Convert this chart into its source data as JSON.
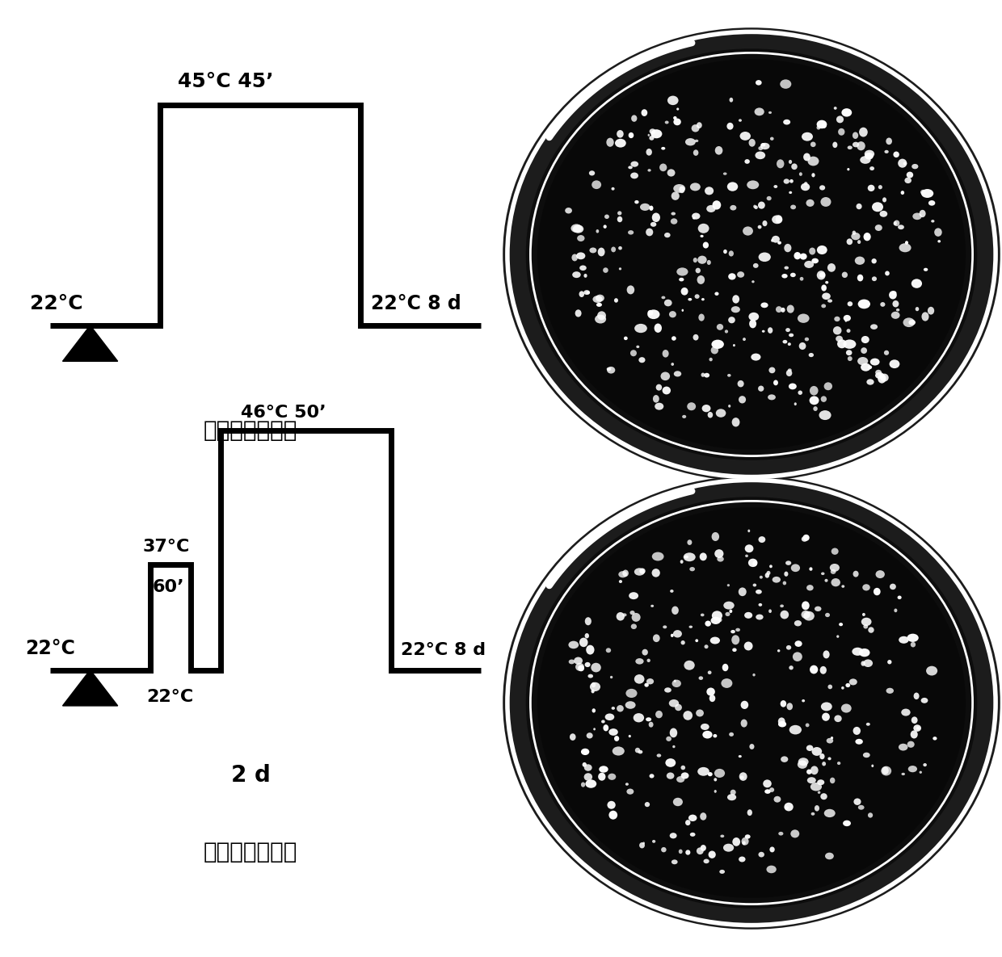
{
  "bg_color": "#ffffff",
  "right_bg_color": "#000000",
  "diagram1": {
    "label_22C_left": "22°C",
    "label_45C": "45°C 45’",
    "label_22C_right": "22°C 8 d",
    "caption": "基础耗热性检验"
  },
  "diagram2": {
    "label_22C_left": "22°C",
    "label_37C": "37°C",
    "label_60prime": "60’",
    "label_46C": "46°C 50’",
    "label_22C_bottom": "22°C",
    "label_22C_right": "22°C 8 d",
    "label_2d": "2 d",
    "caption": "获得耗热性检验"
  },
  "line_width": 5,
  "font_size": 16,
  "font_size_caption": 17
}
